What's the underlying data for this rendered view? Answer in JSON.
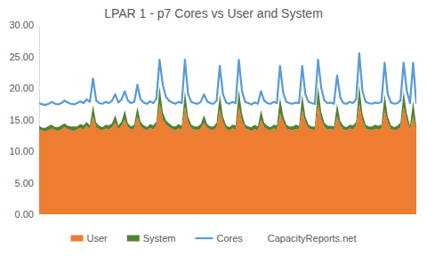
{
  "chart_data": {
    "type": "area",
    "title": "LPAR 1 - p7 Cores vs User and System",
    "annotations": [
      "CapacityReports.net"
    ],
    "stacked": true,
    "grid": false,
    "legend": "bottom",
    "tick_labels": "y",
    "categories": [
      null,
      null,
      null,
      null,
      null,
      null,
      null,
      null,
      null,
      null,
      null,
      null,
      null,
      null,
      null,
      null,
      null,
      null,
      null,
      null,
      null,
      null,
      null,
      null,
      null,
      null,
      null,
      null,
      null,
      null,
      null,
      null,
      null,
      null,
      null,
      null,
      null,
      null,
      null,
      null,
      null,
      null,
      null,
      null,
      null,
      null,
      null,
      null,
      null,
      null,
      null,
      null,
      null,
      null,
      null,
      null,
      null,
      null,
      null,
      null,
      null,
      null,
      null,
      null,
      null,
      null,
      null,
      null,
      null,
      null,
      null,
      null,
      null,
      null,
      null,
      null,
      null,
      null,
      null,
      null,
      null,
      null,
      null,
      null,
      null,
      null,
      null,
      null,
      null,
      null,
      null,
      null,
      null,
      null,
      null,
      null,
      null,
      null,
      null,
      null,
      null,
      null,
      null,
      null,
      null,
      null,
      null,
      null,
      null,
      null,
      null,
      null,
      null,
      null,
      null,
      null,
      null,
      null,
      null,
      null
    ],
    "ylim": [
      0,
      30
    ],
    "yticks": [
      {
        "value": 0,
        "label": "0.00"
      },
      {
        "value": 5,
        "label": "5.00"
      },
      {
        "value": 10,
        "label": "10.00"
      },
      {
        "value": 15,
        "label": "15.00"
      },
      {
        "value": 20,
        "label": "20.00"
      },
      {
        "value": 25,
        "label": "25.00"
      },
      {
        "value": 30,
        "label": "30.00"
      }
    ],
    "series": [
      {
        "name": "User",
        "color": "#ed7d31",
        "type": "area",
        "values": [
          13.4,
          13.2,
          13.1,
          13.3,
          13.6,
          13.3,
          13.2,
          13.4,
          13.8,
          13.5,
          13.3,
          13.2,
          13.4,
          13.7,
          13.4,
          14.0,
          13.6,
          15.5,
          13.8,
          13.4,
          13.3,
          13.6,
          13.4,
          13.8,
          14.5,
          13.5,
          14.0,
          15.0,
          13.8,
          13.4,
          13.6,
          15.5,
          14.0,
          13.5,
          13.3,
          13.7,
          13.4,
          14.1,
          17.5,
          15.0,
          14.2,
          13.8,
          13.5,
          13.3,
          13.6,
          13.4,
          17.0,
          14.5,
          13.6,
          13.4,
          13.3,
          13.6,
          14.5,
          13.7,
          13.4,
          13.3,
          13.8,
          16.5,
          14.5,
          13.5,
          13.3,
          13.6,
          13.4,
          17.0,
          14.8,
          13.6,
          13.4,
          13.2,
          13.5,
          13.3,
          15.0,
          13.8,
          13.4,
          13.3,
          13.6,
          13.4,
          16.0,
          14.6,
          13.6,
          13.4,
          13.3,
          13.5,
          13.4,
          16.5,
          14.5,
          13.6,
          13.4,
          13.3,
          17.5,
          15.0,
          13.8,
          13.4,
          13.5,
          13.3,
          15.5,
          14.0,
          13.4,
          13.3,
          13.6,
          13.4,
          14.0,
          17.5,
          14.8,
          13.6,
          13.4,
          13.3,
          13.5,
          13.4,
          13.6,
          16.5,
          14.5,
          13.5,
          13.3,
          13.4,
          13.8,
          17.0,
          14.8,
          13.4,
          15.5,
          13.3
        ]
      },
      {
        "name": "System",
        "color": "#548235",
        "type": "area",
        "values": [
          0.6,
          0.5,
          0.6,
          0.7,
          0.6,
          0.5,
          0.6,
          0.7,
          0.6,
          0.5,
          0.6,
          0.7,
          0.5,
          0.6,
          0.7,
          0.6,
          0.5,
          1.8,
          0.7,
          0.6,
          0.5,
          0.6,
          0.7,
          0.6,
          1.2,
          0.6,
          0.7,
          1.5,
          0.6,
          0.5,
          0.6,
          1.5,
          0.7,
          0.6,
          0.5,
          0.6,
          0.7,
          0.6,
          2.8,
          1.2,
          0.7,
          0.6,
          0.5,
          0.6,
          0.7,
          0.6,
          2.5,
          1.0,
          0.6,
          0.5,
          0.6,
          0.7,
          1.2,
          0.6,
          0.5,
          0.6,
          0.7,
          2.5,
          1.0,
          0.6,
          0.5,
          0.6,
          0.7,
          2.8,
          1.2,
          0.6,
          0.5,
          0.6,
          0.7,
          0.6,
          1.5,
          0.7,
          0.6,
          0.5,
          0.6,
          0.7,
          2.5,
          1.0,
          0.6,
          0.5,
          0.6,
          0.7,
          0.6,
          2.5,
          1.0,
          0.6,
          0.5,
          0.6,
          2.8,
          1.2,
          0.7,
          0.6,
          0.5,
          0.6,
          2.0,
          0.8,
          0.6,
          0.5,
          0.6,
          0.7,
          0.6,
          3.0,
          1.2,
          0.6,
          0.5,
          0.6,
          0.7,
          0.6,
          0.6,
          2.5,
          1.0,
          0.6,
          0.5,
          0.6,
          0.7,
          2.5,
          1.2,
          0.6,
          2.5,
          0.6
        ]
      },
      {
        "name": "Cores",
        "color": "#5b9bd5",
        "type": "line",
        "values": [
          17.6,
          17.4,
          17.3,
          17.5,
          17.8,
          17.5,
          17.4,
          17.6,
          18.0,
          17.7,
          17.5,
          17.4,
          17.6,
          17.9,
          17.6,
          18.2,
          17.8,
          21.5,
          18.0,
          17.6,
          17.5,
          17.8,
          17.6,
          18.0,
          19.0,
          17.7,
          18.2,
          19.5,
          18.0,
          17.6,
          17.8,
          20.5,
          18.2,
          17.7,
          17.5,
          17.9,
          17.6,
          18.3,
          24.5,
          20.5,
          18.6,
          18.0,
          17.7,
          17.5,
          17.8,
          17.6,
          24.5,
          19.0,
          17.8,
          17.6,
          17.5,
          17.8,
          19.0,
          17.9,
          17.6,
          17.5,
          18.0,
          23.5,
          19.0,
          17.7,
          17.5,
          17.8,
          17.6,
          24.5,
          19.5,
          17.8,
          17.6,
          17.4,
          17.7,
          17.5,
          19.5,
          18.0,
          17.6,
          17.5,
          17.8,
          17.6,
          23.5,
          19.2,
          17.8,
          17.6,
          17.5,
          17.7,
          17.6,
          23.5,
          19.0,
          17.8,
          17.6,
          17.5,
          24.5,
          20.0,
          18.0,
          17.6,
          17.7,
          17.5,
          22.0,
          18.5,
          17.6,
          17.5,
          17.8,
          17.6,
          18.2,
          25.5,
          19.5,
          17.8,
          17.6,
          17.5,
          17.7,
          17.6,
          17.8,
          24.0,
          19.0,
          17.7,
          17.5,
          17.6,
          18.0,
          24.0,
          19.5,
          17.6,
          24.0,
          17.5
        ]
      }
    ]
  }
}
